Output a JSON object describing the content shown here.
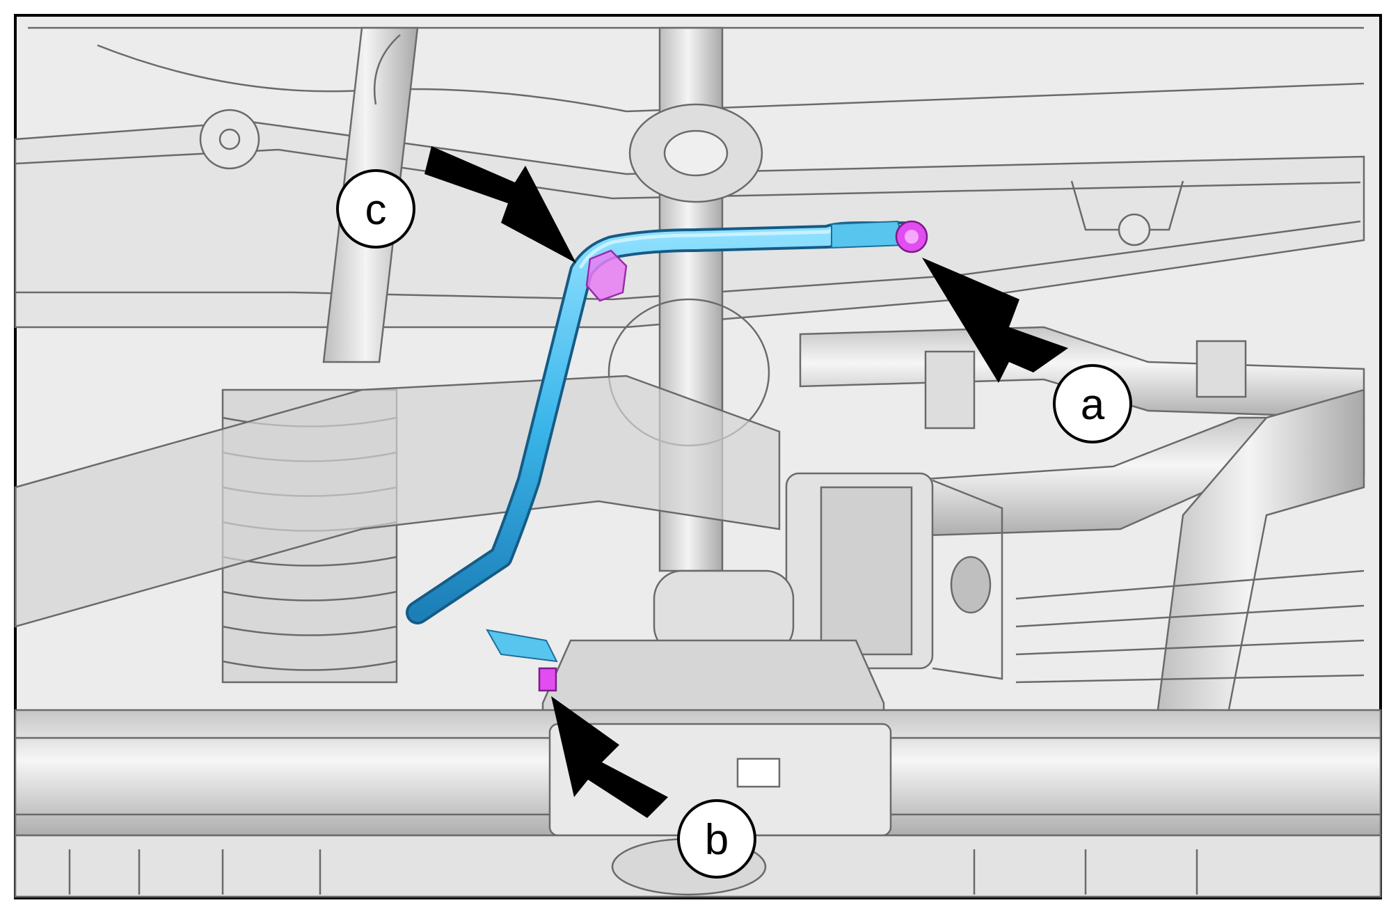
{
  "diagram": {
    "callouts": [
      {
        "id": "a",
        "label": "a",
        "target": "hose-bracket-bolt-right"
      },
      {
        "id": "b",
        "label": "b",
        "target": "hose-clip-fastener-lower"
      },
      {
        "id": "c",
        "label": "c",
        "target": "hose-retaining-clip-upper"
      }
    ],
    "colors": {
      "highlighted_hose": "#3bb6ea",
      "fasteners": "#e14df0",
      "callout_arrow": "#000000",
      "line_art": "#6e6e6e",
      "component_fill": "#e9e9e9",
      "background": "#ffffff"
    }
  }
}
